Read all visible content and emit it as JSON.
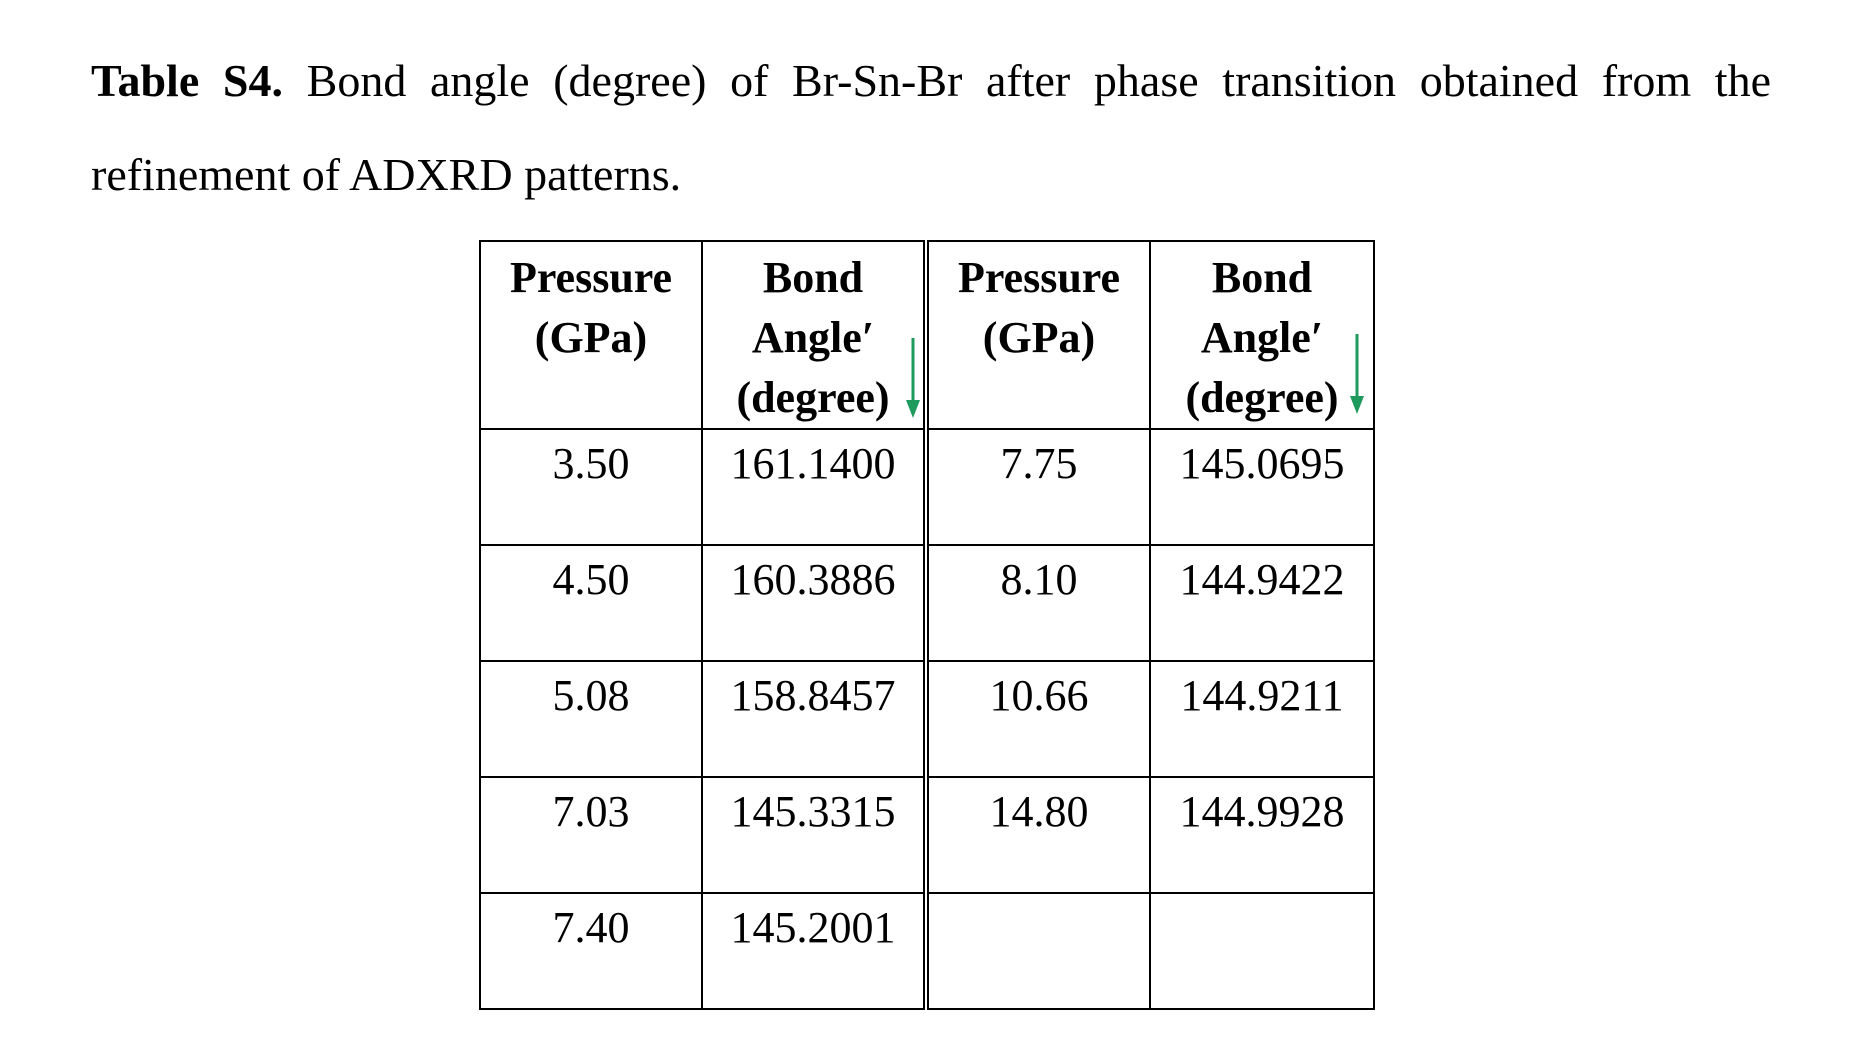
{
  "caption": {
    "label": "Table S4.",
    "text": " Bond angle (degree) of Br-Sn-Br after phase transition obtained from the refinement of ADXRD patterns."
  },
  "table": {
    "headers": [
      {
        "line1": "Pressure",
        "line2": "(GPa)",
        "line3": ""
      },
      {
        "line1": "Bond",
        "line2": "Angle′",
        "line3": "(degree)"
      },
      {
        "line1": "Pressure",
        "line2": "(GPa)",
        "line3": ""
      },
      {
        "line1": "Bond",
        "line2": "Angle′",
        "line3": "(degree)"
      }
    ],
    "rows": [
      [
        "3.50",
        "161.1400",
        "7.75",
        "145.0695"
      ],
      [
        "4.50",
        "160.3886",
        "8.10",
        "144.9422"
      ],
      [
        "5.08",
        "158.8457",
        "10.66",
        "144.9211"
      ],
      [
        "7.03",
        "145.3315",
        "14.80",
        "144.9928"
      ],
      [
        "7.40",
        "145.2001",
        "",
        ""
      ]
    ]
  },
  "colors": {
    "annotation_arrow": "#1e9a5c"
  },
  "icons": {
    "annotation": "down-arrow-icon"
  }
}
